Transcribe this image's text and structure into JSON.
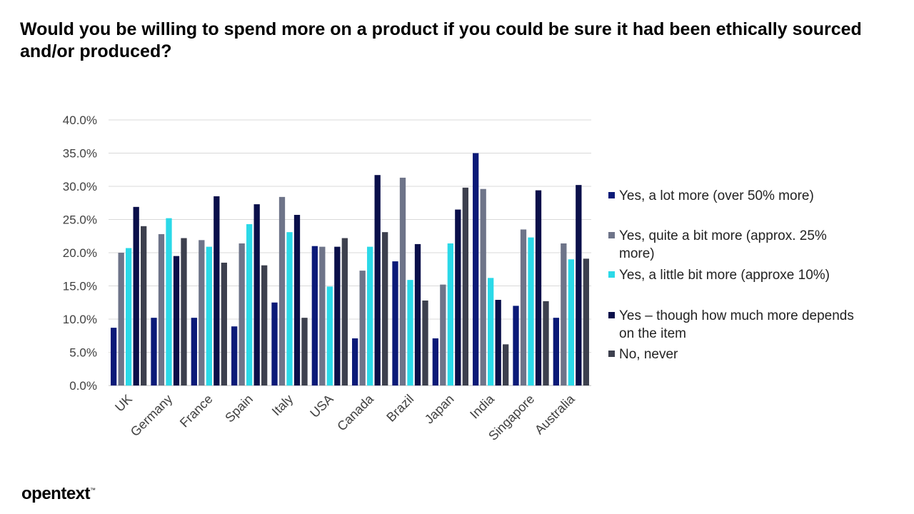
{
  "title": "Would you be willing to spend more on a product if you could be sure it had been ethically sourced and/or produced?",
  "brand": {
    "logo_text": "opentext",
    "trademark": "™"
  },
  "chart_data": {
    "type": "bar",
    "title": "Would you be willing to spend more on a product if you could be sure it had been ethically sourced and/or produced?",
    "xlabel": "",
    "ylabel": "",
    "ylim": [
      0,
      40
    ],
    "ytick_step": 5,
    "ytick_format": "percent-1dp",
    "grid": true,
    "legend_position": "right",
    "categories": [
      "UK",
      "Germany",
      "France",
      "Spain",
      "Italy",
      "USA",
      "Canada",
      "Brazil",
      "Japan",
      "India",
      "Singapore",
      "Australia"
    ],
    "series": [
      {
        "name": "Yes, a lot more (over 50% more)",
        "color": "#0b1a78",
        "values": [
          8.7,
          10.2,
          10.2,
          8.9,
          12.5,
          21.0,
          7.1,
          18.7,
          7.1,
          35.0,
          12.0,
          10.2
        ]
      },
      {
        "name": "Yes, quite a bit more (approx. 25% more)",
        "color": "#6e7489",
        "values": [
          20.0,
          22.8,
          21.9,
          21.4,
          28.4,
          20.9,
          17.3,
          31.3,
          15.2,
          29.6,
          23.5,
          21.4
        ]
      },
      {
        "name": "Yes, a little bit more (approxe 10%)",
        "color": "#2bd9e8",
        "values": [
          20.7,
          25.2,
          20.9,
          24.3,
          23.1,
          14.9,
          20.9,
          15.9,
          21.4,
          16.2,
          22.3,
          19.0
        ]
      },
      {
        "name": "Yes – though how much more depends on the item",
        "color": "#0a0f4a",
        "values": [
          26.9,
          19.5,
          28.5,
          27.3,
          25.7,
          20.9,
          31.7,
          21.3,
          26.5,
          12.9,
          29.4,
          30.2
        ]
      },
      {
        "name": "No, never",
        "color": "#3d404e",
        "values": [
          24.0,
          22.2,
          18.5,
          18.1,
          10.2,
          22.2,
          23.1,
          12.8,
          29.8,
          6.2,
          12.7,
          19.1
        ]
      }
    ]
  }
}
